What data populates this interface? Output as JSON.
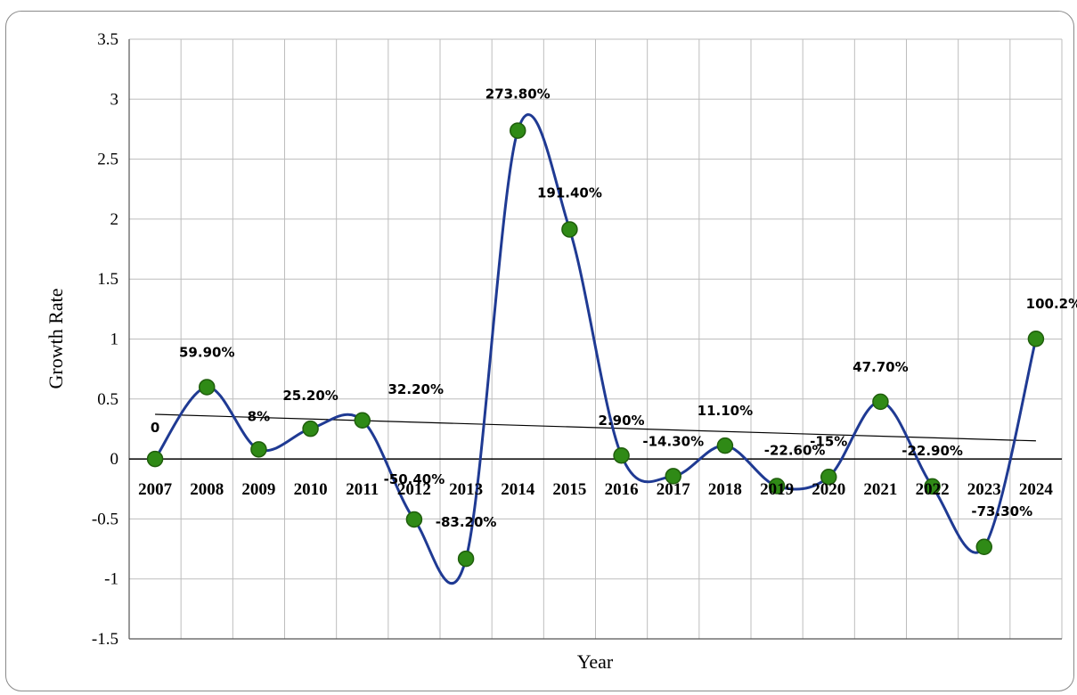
{
  "chart_data": {
    "type": "line",
    "xlabel": "Year",
    "ylabel": "Growth Rate",
    "ylim": [
      -1.5,
      3.5
    ],
    "yticks": [
      "3.5",
      "3",
      "2.5",
      "2",
      "1.5",
      "1",
      "0.5",
      "0",
      "-0.5",
      "-1",
      "-1.5"
    ],
    "grid": true,
    "smooth": true,
    "trendline": true,
    "colors": {
      "line": "#1f3a93",
      "marker": "#2f8a16",
      "marker_edge": "#1f5e0c",
      "trend": "#000000",
      "grid": "#bdbdbd"
    },
    "series": [
      {
        "x": [
          "2007",
          "2008",
          "2009",
          "2010",
          "2011",
          "2012",
          "2013",
          "2014",
          "2015",
          "2016",
          "2017",
          "2018",
          "2019",
          "2020",
          "2021",
          "2022",
          "2023",
          "2024"
        ],
        "values": [
          0,
          0.599,
          0.08,
          0.252,
          0.322,
          -0.504,
          -0.832,
          2.738,
          1.914,
          0.029,
          -0.143,
          0.111,
          -0.226,
          -0.15,
          0.477,
          -0.229,
          -0.733,
          1.002
        ],
        "labels": [
          "0",
          "59.90%",
          "8%",
          "25.20%",
          "32.20%",
          "-50.40%",
          "-83.20%",
          "273.80%",
          "191.40%",
          "2.90%",
          "-14.30%",
          "11.10%",
          "-22.60%",
          "-15%",
          "47.70%",
          "-22.90%",
          "-73.30%",
          "100.2%"
        ]
      }
    ]
  }
}
